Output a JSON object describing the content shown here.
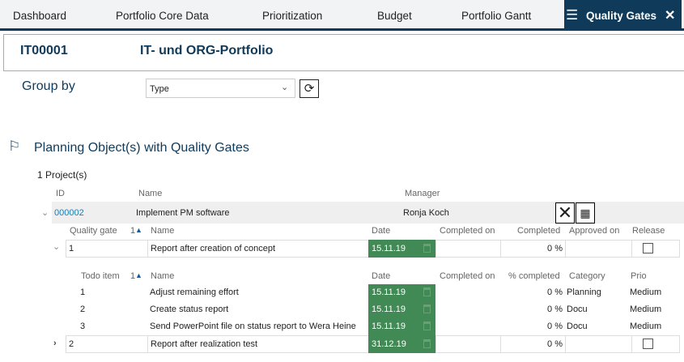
{
  "tabs": [
    "Dashboard",
    "Portfolio Core Data",
    "Prioritization",
    "Budget",
    "Portfolio Gantt"
  ],
  "active_tab": "Quality Gates",
  "portfolio": {
    "id": "IT00001",
    "name": "IT- und ORG-Portfolio"
  },
  "group_by": {
    "label": "Group by",
    "value": "Type"
  },
  "section_title": "Planning Object(s) with Quality Gates",
  "count": "1 Project(s)",
  "project_headers": {
    "id": "ID",
    "name": "Name",
    "manager": "Manager"
  },
  "project": {
    "id": "000002",
    "name": "Implement PM software",
    "manager": "Ronja Koch"
  },
  "qg_headers": {
    "gate": "Quality gate",
    "sort": "1",
    "name": "Name",
    "date": "Date",
    "completed_on": "Completed on",
    "completed": "Completed",
    "approved_on": "Approved on",
    "release": "Release"
  },
  "quality_gates": [
    {
      "no": "1",
      "name": "Report after creation of concept",
      "date": "15.11.19",
      "completed": "0 %",
      "expanded": true
    },
    {
      "no": "2",
      "name": "Report after realization test",
      "date": "31.12.19",
      "completed": "0 %",
      "expanded": false
    }
  ],
  "todo_headers": {
    "item": "Todo item",
    "sort": "1",
    "name": "Name",
    "date": "Date",
    "completed_on": "Completed on",
    "pct": "% completed",
    "category": "Category",
    "prio": "Prio"
  },
  "todos": [
    {
      "no": "1",
      "name": "Adjust remaining effort",
      "date": "15.11.19",
      "pct": "0 %",
      "category": "Planning",
      "prio": "Medium"
    },
    {
      "no": "2",
      "name": "Create status report",
      "date": "15.11.19",
      "pct": "0 %",
      "category": "Docu",
      "prio": "Medium"
    },
    {
      "no": "3",
      "name": "Send PowerPoint file on status report to Wera Heine",
      "date": "15.11.19",
      "pct": "0 %",
      "category": "Docu",
      "prio": "Medium"
    }
  ],
  "colors": {
    "nav": "#0f3a5a",
    "date_ok": "#418a55",
    "link": "#1a7db5"
  }
}
